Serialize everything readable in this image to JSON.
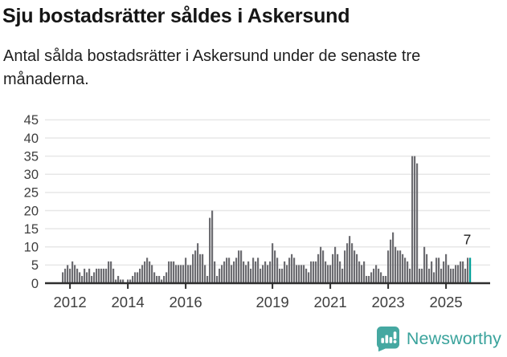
{
  "header": {
    "title": "Sju bostadsrätter såldes i Askersund",
    "subtitle": "Antal sålda bostadsrätter i Askersund under de senaste tre månaderna."
  },
  "chart_data": {
    "type": "bar",
    "title": "Antal sålda bostadsrätter i Askersund under de senaste tre månaderna",
    "x_unit": "month",
    "x_start": "2011-10",
    "x_end": "2025-11",
    "values": [
      3,
      4,
      5,
      4,
      6,
      5,
      4,
      3,
      2,
      4,
      3,
      4,
      2,
      3,
      4,
      4,
      4,
      4,
      4,
      6,
      6,
      4,
      1,
      2,
      1,
      1,
      0,
      1,
      1,
      2,
      3,
      3,
      4,
      5,
      6,
      7,
      6,
      5,
      3,
      2,
      2,
      1,
      2,
      3,
      6,
      6,
      6,
      5,
      5,
      5,
      5,
      7,
      5,
      5,
      8,
      9,
      11,
      8,
      8,
      5,
      2,
      18,
      20,
      6,
      2,
      4,
      5,
      6,
      7,
      7,
      5,
      6,
      7,
      9,
      9,
      6,
      5,
      6,
      4,
      7,
      6,
      7,
      4,
      5,
      6,
      5,
      6,
      11,
      9,
      7,
      4,
      4,
      6,
      5,
      7,
      8,
      7,
      5,
      5,
      5,
      5,
      4,
      3,
      6,
      6,
      6,
      8,
      10,
      9,
      6,
      5,
      5,
      8,
      10,
      8,
      6,
      4,
      9,
      11,
      13,
      11,
      9,
      8,
      6,
      5,
      6,
      2,
      2,
      3,
      4,
      5,
      4,
      3,
      2,
      2,
      9,
      12,
      14,
      10,
      9,
      9,
      8,
      7,
      6,
      4,
      35,
      35,
      33,
      4,
      4,
      10,
      8,
      4,
      6,
      3,
      7,
      7,
      4,
      6,
      8,
      5,
      4,
      4,
      5,
      5,
      6,
      6,
      4,
      7,
      7
    ],
    "ylim": [
      0,
      45
    ],
    "yticks": [
      0,
      5,
      10,
      15,
      20,
      25,
      30,
      35,
      40,
      45
    ],
    "xticks": [
      2012,
      2014,
      2016,
      2019,
      2021,
      2023,
      2025
    ],
    "grid": true,
    "legend": "none",
    "highlight_last_bar": true,
    "annotation": {
      "text": "7",
      "target": "last-bar"
    },
    "colors": {
      "bar": "#6c6c71",
      "highlight": "#00a099",
      "grid": "#e7e7e7",
      "axis": "#2e2e2e",
      "tick_label": "#3e3e3e",
      "annotation": "#1d1d1d"
    }
  },
  "branding": {
    "logo_text": "Newsworthy",
    "logo_color": "#3aa39c",
    "icon_color": "#45a8a1",
    "icon": "speech-bubble-with-bar-chart-and-exclamation"
  }
}
